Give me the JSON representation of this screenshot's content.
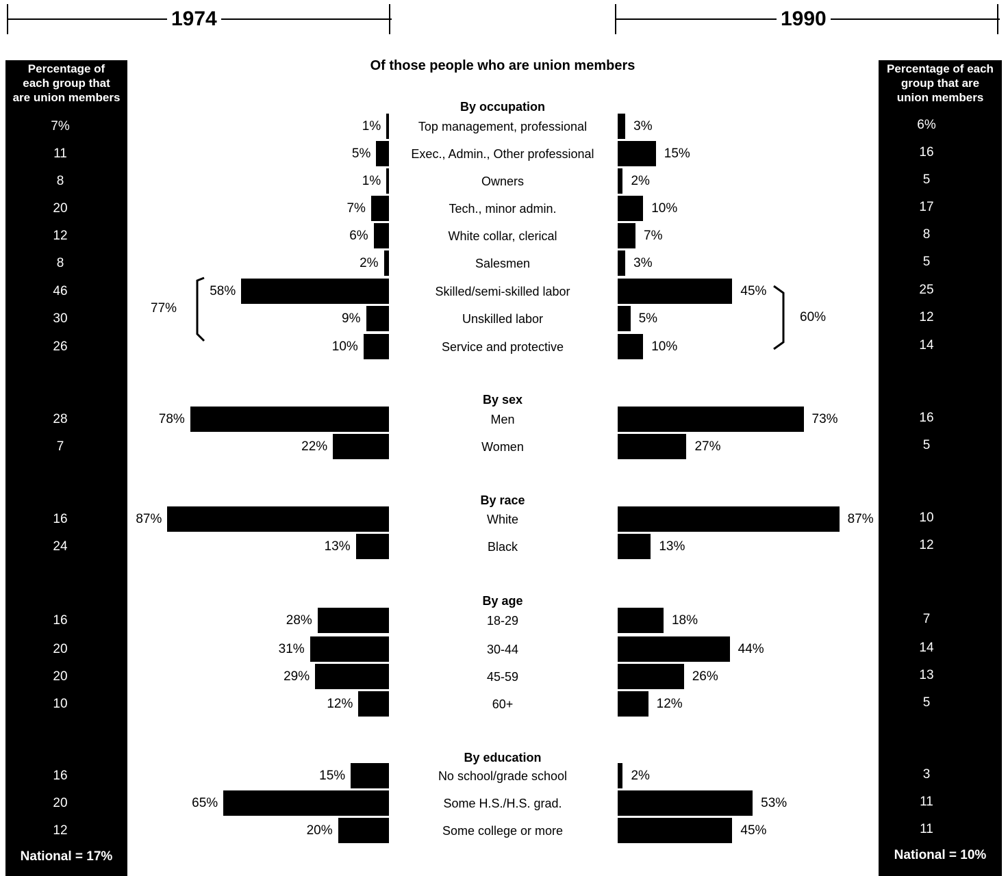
{
  "header": {
    "year_1974": "1974",
    "year_1990": "1990",
    "main_title": "Of those people who are union members"
  },
  "left_panel": {
    "title": "Percentage of\neach group that\nare union members",
    "national": "National = 17%"
  },
  "right_panel": {
    "title": "Percentage of each\ngroup that are\nunion members",
    "national": "National = 10%"
  },
  "brackets": {
    "left_total": "77%",
    "right_total": "60%"
  },
  "chart_data": {
    "type": "bar",
    "title": "Of those people who are union members",
    "series_names": [
      "1974",
      "1990"
    ],
    "sections": [
      {
        "title": "By occupation",
        "rows": [
          {
            "label": "Top management, professional",
            "share_1974": 1,
            "share_1990": 3,
            "rate_1974": "7%",
            "rate_1990": "6%"
          },
          {
            "label": "Exec., Admin., Other professional",
            "share_1974": 5,
            "share_1990": 15,
            "rate_1974": "11",
            "rate_1990": "16"
          },
          {
            "label": "Owners",
            "share_1974": 1,
            "share_1990": 2,
            "rate_1974": "8",
            "rate_1990": "5"
          },
          {
            "label": "Tech., minor admin.",
            "share_1974": 7,
            "share_1990": 10,
            "rate_1974": "20",
            "rate_1990": "17"
          },
          {
            "label": "White collar, clerical",
            "share_1974": 6,
            "share_1990": 7,
            "rate_1974": "12",
            "rate_1990": "8"
          },
          {
            "label": "Salesmen",
            "share_1974": 2,
            "share_1990": 3,
            "rate_1974": "8",
            "rate_1990": "5"
          },
          {
            "label": "Skilled/semi-skilled labor",
            "share_1974": 58,
            "share_1990": 45,
            "rate_1974": "46",
            "rate_1990": "25"
          },
          {
            "label": "Unskilled labor",
            "share_1974": 9,
            "share_1990": 5,
            "rate_1974": "30",
            "rate_1990": "12"
          },
          {
            "label": "Service and protective",
            "share_1974": 10,
            "share_1990": 10,
            "rate_1974": "26",
            "rate_1990": "14"
          }
        ]
      },
      {
        "title": "By sex",
        "rows": [
          {
            "label": "Men",
            "share_1974": 78,
            "share_1990": 73,
            "rate_1974": "28",
            "rate_1990": "16"
          },
          {
            "label": "Women",
            "share_1974": 22,
            "share_1990": 27,
            "rate_1974": "7",
            "rate_1990": "5"
          }
        ]
      },
      {
        "title": "By race",
        "rows": [
          {
            "label": "White",
            "share_1974": 87,
            "share_1990": 87,
            "rate_1974": "16",
            "rate_1990": "10"
          },
          {
            "label": "Black",
            "share_1974": 13,
            "share_1990": 13,
            "rate_1974": "24",
            "rate_1990": "12"
          }
        ]
      },
      {
        "title": "By age",
        "rows": [
          {
            "label": "18-29",
            "share_1974": 28,
            "share_1990": 18,
            "rate_1974": "16",
            "rate_1990": "7"
          },
          {
            "label": "30-44",
            "share_1974": 31,
            "share_1990": 44,
            "rate_1974": "20",
            "rate_1990": "14"
          },
          {
            "label": "45-59",
            "share_1974": 29,
            "share_1990": 26,
            "rate_1974": "20",
            "rate_1990": "13"
          },
          {
            "label": "60+",
            "share_1974": 12,
            "share_1990": 12,
            "rate_1974": "10",
            "rate_1990": "5"
          }
        ]
      },
      {
        "title": "By education",
        "rows": [
          {
            "label": "No school/grade school",
            "share_1974": 15,
            "share_1990": 2,
            "rate_1974": "16",
            "rate_1990": "3"
          },
          {
            "label": "Some H.S./H.S. grad.",
            "share_1974": 65,
            "share_1990": 53,
            "rate_1974": "20",
            "rate_1990": "11"
          },
          {
            "label": "Some college or more",
            "share_1974": 20,
            "share_1990": 45,
            "rate_1974": "12",
            "rate_1990": "11"
          }
        ]
      }
    ]
  }
}
